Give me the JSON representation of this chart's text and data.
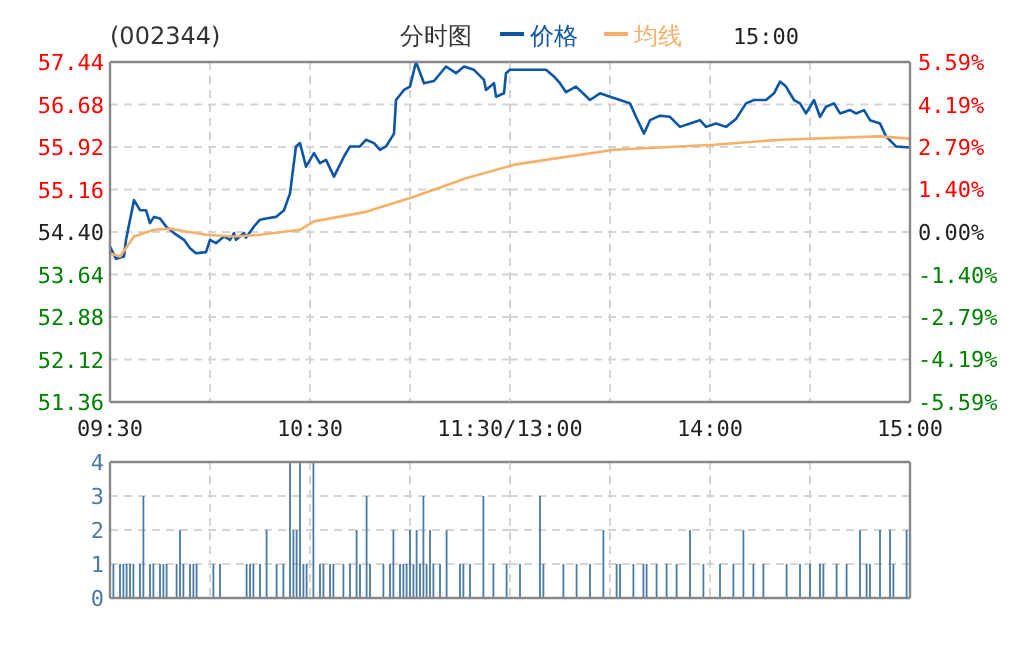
{
  "chart_data": [
    {
      "type": "line",
      "title": "分时图",
      "subtitle": "(002344)",
      "annotations": [
        "15:00"
      ],
      "legend": "top",
      "grid": true,
      "xlim": [
        9.5,
        11.5
      ],
      "xticks": [
        {
          "value": 9.5,
          "label": "09:30"
        },
        {
          "value": 10,
          "label": null
        },
        {
          "value": 10.5,
          "label": "10:30"
        },
        {
          "value": 11,
          "label": null
        },
        {
          "value": 11.5,
          "label": "11:30/13:00"
        }
      ],
      "ylim": [
        51.36,
        57.44
      ],
      "yticks": [
        51.36,
        52.12,
        52.88,
        53.64,
        {
          "value": 54.4,
          "label": "54.40"
        },
        55.16,
        55.92,
        56.68,
        57.44
      ],
      "series": [
        {
          "name": "价格",
          "color": "#0d55a5",
          "x": [
            9.5,
            9.53,
            9.57,
            9.58,
            9.62,
            9.65,
            9.68,
            9.7,
            9.72,
            9.75,
            9.78,
            9.82,
            9.87,
            9.9,
            9.93,
            9.98,
            10,
            10.03,
            10.07,
            10.1,
            10.12,
            10.13,
            10.17,
            10.18,
            10.22,
            10.25,
            10.28,
            10.33,
            10.37,
            10.4,
            10.43,
            10.45,
            10.48,
            10.52,
            10.55,
            10.58,
            10.62,
            10.67,
            10.7,
            10.75,
            10.78,
            10.82,
            10.85,
            10.88,
            10.92,
            10.93,
            10.97,
            11,
            11.03,
            11.07,
            11.12,
            11.18,
            11.23,
            11.27,
            11.32,
            11.37,
            11.38,
            11.42,
            11.43,
            11.47,
            11.48,
            11.5
          ],
          "values": [
            54.14,
            53.92,
            53.96,
            54.26,
            54.97,
            54.79,
            54.79,
            54.56,
            54.67,
            54.64,
            54.5,
            54.38,
            54.26,
            54.11,
            54.02,
            54.04,
            54.26,
            54.2,
            54.32,
            54.26,
            54.38,
            54.26,
            54.38,
            54.3,
            54.5,
            54.62,
            54.64,
            54.67,
            54.79,
            55.09,
            55.93,
            55.99,
            55.57,
            55.81,
            55.63,
            55.69,
            55.39,
            55.75,
            55.93,
            55.93,
            56.05,
            55.99,
            55.87,
            55.93,
            56.16,
            56.76,
            56.94,
            57.0,
            57.44,
            57.06,
            57.1,
            57.36,
            57.24,
            57.36,
            57.3,
            57.12,
            56.94,
            57.06,
            56.82,
            56.88,
            57.24,
            57.3
          ]
        },
        {
          "name": "均线",
          "color": "#f5b06a",
          "x": [
            9.5,
            9.55,
            9.62,
            9.72,
            9.8,
            9.88,
            9.98,
            10.12,
            10.25,
            10.45,
            10.52,
            10.78,
            11.02,
            11.28,
            11.5
          ],
          "values": [
            54.02,
            53.96,
            54.32,
            54.44,
            54.46,
            54.41,
            54.35,
            54.32,
            54.35,
            54.44,
            54.59,
            54.76,
            55.03,
            55.36,
            55.58
          ]
        }
      ]
    },
    {
      "type": "line",
      "grid": true,
      "tick_labels": "x",
      "xlim": [
        13,
        15
      ],
      "xticks": [
        {
          "value": 13,
          "label": null
        },
        {
          "value": 13.5,
          "label": null
        },
        {
          "value": 14,
          "label": "14:00"
        },
        {
          "value": 14.5,
          "label": null
        },
        {
          "value": 15,
          "label": "15:00"
        }
      ],
      "ylim": [
        51.36,
        57.44
      ],
      "yticks": [
        51.36,
        52.12,
        52.88,
        53.64,
        54.4,
        55.16,
        55.92,
        56.68,
        57.44
      ],
      "y2lim": [
        -5.59,
        5.59
      ],
      "y2ticks": [
        {
          "value": -5.59,
          "label": "-5.59%"
        },
        {
          "value": -4.19,
          "label": "-4.19%"
        },
        {
          "value": -2.79,
          "label": "-2.79%"
        },
        {
          "value": -1.4,
          "label": "-1.40%"
        },
        {
          "value": 0,
          "label": "0.00%"
        },
        {
          "value": 1.4,
          "label": "1.40%"
        },
        {
          "value": 2.79,
          "label": "2.79%"
        },
        {
          "value": 4.19,
          "label": "4.19%"
        },
        {
          "value": 5.59,
          "label": "5.59%"
        }
      ],
      "series": [
        {
          "color": "#0d55a5",
          "x": [
            13,
            13.03,
            13.1,
            13.18,
            13.22,
            13.25,
            13.28,
            13.33,
            13.4,
            13.45,
            13.5,
            13.55,
            13.6,
            13.63,
            13.67,
            13.7,
            13.75,
            13.8,
            13.85,
            13.9,
            13.95,
            13.98,
            14.03,
            14.08,
            14.13,
            14.18,
            14.22,
            14.28,
            14.32,
            14.35,
            14.38,
            14.42,
            14.45,
            14.48,
            14.52,
            14.55,
            14.58,
            14.62,
            14.65,
            14.7,
            14.73,
            14.77,
            14.8,
            14.85,
            14.88,
            14.93,
            15
          ],
          "values": [
            57.3,
            57.3,
            57.3,
            57.3,
            57.18,
            57.06,
            56.9,
            57.0,
            56.76,
            56.88,
            56.82,
            56.76,
            56.7,
            56.46,
            56.16,
            56.4,
            56.48,
            56.46,
            56.28,
            56.34,
            56.4,
            56.28,
            56.34,
            56.28,
            56.42,
            56.7,
            56.76,
            56.76,
            56.88,
            57.09,
            57.0,
            56.76,
            56.7,
            56.52,
            56.76,
            56.46,
            56.64,
            56.7,
            56.52,
            56.58,
            56.52,
            56.58,
            56.4,
            56.34,
            56.11,
            55.93,
            55.91
          ]
        },
        {
          "color": "#f5b06a",
          "x": [
            13,
            13.03,
            13.18,
            13.52,
            14.02,
            14.35,
            14.85,
            15
          ],
          "values": [
            55.58,
            55.61,
            55.69,
            55.87,
            55.96,
            56.05,
            56.11,
            56.07
          ]
        }
      ]
    },
    {
      "type": "bar",
      "grid": true,
      "tick_labels": "y",
      "xlim": [
        9.5,
        11.5
      ],
      "xticks": [
        9.5,
        10,
        10.5,
        11,
        11.5
      ],
      "ylim": [
        0,
        4
      ],
      "yticks": [
        0,
        1,
        2,
        3,
        4
      ],
      "series": [
        {
          "color": "#4a7aa6",
          "x": [
            9.517,
            9.55,
            9.567,
            9.583,
            9.6,
            9.617,
            9.65,
            9.667,
            9.7,
            9.717,
            9.75,
            9.767,
            9.783,
            9.833,
            9.85,
            9.867,
            9.9,
            9.917,
            9.933,
            10.017,
            10.05,
            10.183,
            10.2,
            10.217,
            10.25,
            10.283,
            10.333,
            10.367,
            10.4,
            10.417,
            10.433,
            10.45,
            10.467,
            10.483,
            10.517,
            10.55,
            10.567,
            10.6,
            10.617,
            10.667,
            10.7,
            10.733,
            10.75,
            10.783,
            10.8,
            10.867,
            10.9,
            10.917,
            10.95,
            10.967,
            10.983,
            11,
            11.017,
            11.033,
            11.05,
            11.067,
            11.083,
            11.1,
            11.117,
            11.15,
            11.183,
            11.25,
            11.267,
            11.3,
            11.367,
            11.417,
            11.483
          ],
          "values": [
            1,
            1,
            1,
            1,
            1,
            1,
            1,
            3,
            1,
            1,
            1,
            1,
            1,
            1,
            2,
            1,
            1,
            1,
            1,
            1,
            1,
            1,
            1,
            1,
            1,
            2,
            1,
            1,
            4,
            2,
            2,
            4,
            1,
            1,
            4,
            1,
            1,
            1,
            1,
            1,
            1,
            2,
            1,
            3,
            1,
            1,
            1,
            2,
            1,
            1,
            1,
            2,
            1,
            2,
            1,
            3,
            1,
            2,
            1,
            1,
            2,
            1,
            1,
            1,
            3,
            1,
            1
          ]
        }
      ]
    },
    {
      "type": "bar",
      "grid": true,
      "tick_labels": false,
      "xlim": [
        13,
        15
      ],
      "xticks": [
        13,
        13.5,
        14,
        14.5,
        15
      ],
      "ylim": [
        0,
        4
      ],
      "yticks": [
        0,
        1,
        2,
        3,
        4
      ],
      "series": [
        {
          "color": "#4a7aa6",
          "x": [
            13.05,
            13.15,
            13.167,
            13.267,
            13.333,
            13.4,
            13.467,
            13.533,
            13.55,
            13.617,
            13.667,
            13.683,
            13.733,
            13.783,
            13.833,
            13.9,
            13.967,
            14.05,
            14.117,
            14.167,
            14.217,
            14.267,
            14.383,
            14.45,
            14.5,
            14.55,
            14.567,
            14.633,
            14.683,
            14.75,
            14.783,
            14.8,
            14.85,
            14.9,
            14.917,
            14.983
          ],
          "values": [
            1,
            3,
            1,
            1,
            1,
            1,
            2,
            1,
            1,
            1,
            1,
            1,
            1,
            1,
            1,
            2,
            1,
            1,
            1,
            2,
            1,
            1,
            1,
            1,
            1,
            1,
            1,
            1,
            1,
            2,
            1,
            1,
            2,
            2,
            1,
            2
          ]
        }
      ]
    }
  ]
}
